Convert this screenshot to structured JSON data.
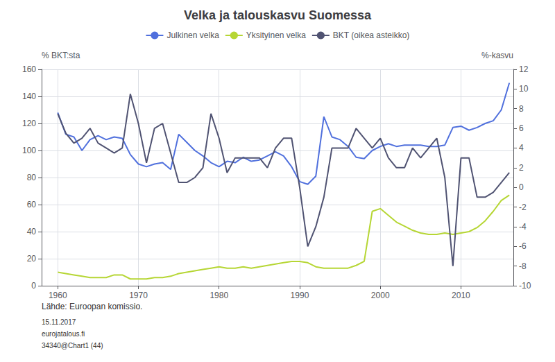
{
  "chart_data": {
    "type": "line",
    "title": "Velka ja talouskasvu Suomessa",
    "ylabel": "% BKT:sta",
    "y2label": "%-kasvu",
    "annotations": [
      "Lähde: Euroopan komissio.",
      "15.11.2017",
      "eurojatalous.fi",
      "34340@Chart1 (44)"
    ],
    "x": [
      1960,
      1961,
      1962,
      1963,
      1964,
      1965,
      1966,
      1967,
      1968,
      1969,
      1970,
      1971,
      1972,
      1973,
      1974,
      1975,
      1976,
      1977,
      1978,
      1979,
      1980,
      1981,
      1982,
      1983,
      1984,
      1985,
      1986,
      1987,
      1988,
      1989,
      1990,
      1991,
      1992,
      1993,
      1994,
      1995,
      1996,
      1997,
      1998,
      1999,
      2000,
      2001,
      2002,
      2003,
      2004,
      2005,
      2006,
      2007,
      2008,
      2009,
      2010,
      2011,
      2012,
      2013,
      2014,
      2015,
      2016
    ],
    "series": [
      {
        "name": "Julkinen velka",
        "values": [
          128,
          112,
          110,
          100,
          108,
          111,
          108,
          110,
          109,
          97,
          90,
          88,
          90,
          91,
          86,
          112,
          106,
          100,
          96,
          91,
          88,
          92,
          91,
          95,
          92,
          93,
          96,
          99,
          96,
          88,
          77,
          75,
          81,
          125,
          110,
          108,
          103,
          95,
          94,
          100,
          103,
          105,
          103,
          104,
          104,
          104,
          103,
          103,
          104,
          117,
          118,
          115,
          117,
          120,
          122,
          130,
          150
        ]
      },
      {
        "name": "Yksityinen velka",
        "values": [
          10,
          9,
          8,
          7,
          6,
          6,
          6,
          8,
          8,
          5,
          5,
          5,
          6,
          6,
          7,
          9,
          10,
          11,
          12,
          13,
          14,
          13,
          13,
          14,
          13,
          14,
          15,
          16,
          17,
          18,
          18,
          17,
          14,
          13,
          13,
          13,
          13,
          15,
          18,
          55,
          57,
          52,
          47,
          44,
          41,
          39,
          38,
          38,
          39,
          38,
          39,
          40,
          43,
          48,
          55,
          63,
          67
        ]
      },
      {
        "name": "BKT (oikea asteikko)",
        "axis": "y2",
        "values": [
          7.5,
          5.5,
          4.5,
          5,
          6,
          4.5,
          4,
          3.5,
          4,
          9.5,
          6.5,
          2.5,
          6,
          6.5,
          3.5,
          0.5,
          0.5,
          1,
          2,
          7.5,
          5,
          1.5,
          3,
          3,
          3,
          3,
          2,
          4,
          5,
          5,
          0,
          -6,
          -4,
          -1,
          4,
          4,
          4,
          6,
          5,
          4,
          5,
          3,
          2,
          2,
          4,
          3,
          4,
          5,
          1,
          -8,
          3,
          3,
          -1,
          -1,
          -0.5,
          0.5,
          1.5
        ]
      }
    ],
    "xlim": [
      1958,
      2016.5
    ],
    "xticks": [
      1960,
      1970,
      1980,
      1990,
      2000,
      2010
    ],
    "ylim": [
      0,
      160
    ],
    "yticks": [
      0,
      20,
      40,
      60,
      80,
      100,
      120,
      140,
      160
    ],
    "y2lim": [
      -10,
      12
    ],
    "y2ticks": [
      -10,
      -8,
      -6,
      -4,
      -2,
      0,
      2,
      4,
      6,
      8,
      10,
      12
    ],
    "grid": true,
    "legend": "top"
  }
}
